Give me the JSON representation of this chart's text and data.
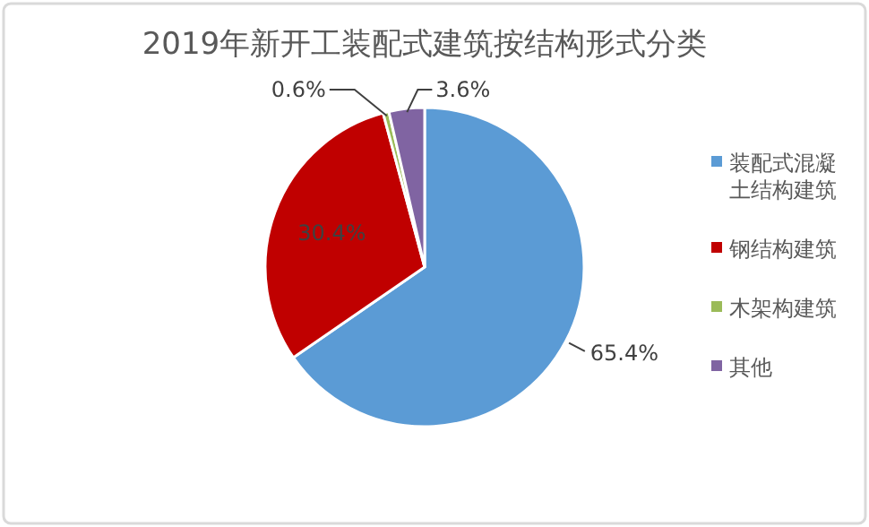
{
  "chart_data": {
    "type": "pie",
    "title": "2019年新开工装配式建筑按结构形式分类",
    "categories": [
      "装配式混凝土结构建筑",
      "钢结构建筑",
      "木架构建筑",
      "其他"
    ],
    "values": [
      65.4,
      30.4,
      0.6,
      3.6
    ],
    "colors": [
      "#5b9bd5",
      "#c00000",
      "#9bbb59",
      "#8064a2"
    ],
    "value_labels": [
      "65.4%",
      "30.4%",
      "0.6%",
      "3.6%"
    ],
    "legend": "right"
  }
}
